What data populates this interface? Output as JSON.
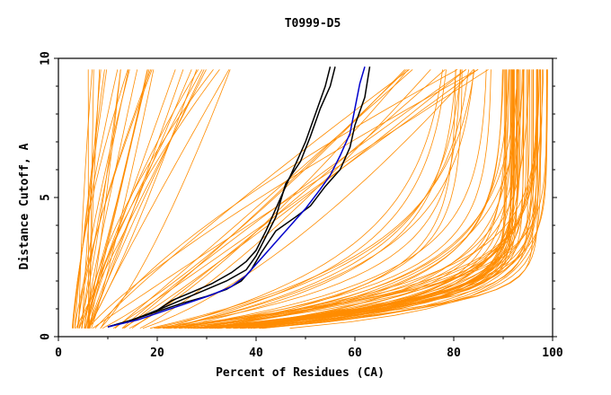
{
  "chart_data": {
    "type": "line",
    "title": "T0999-D5",
    "xlabel": "Percent of Residues (CA)",
    "ylabel": "Distance Cutoff, A",
    "xlim": [
      0,
      100
    ],
    "ylim": [
      0,
      10
    ],
    "x_ticks": [
      "0",
      "20",
      "40",
      "60",
      "80",
      "100"
    ],
    "y_ticks": [
      "0",
      "5",
      "10"
    ],
    "grid": false,
    "legend": "none",
    "colors": {
      "reference": "#000000",
      "highlight": "#0000cc",
      "other": "#ff8c00"
    },
    "series": [
      {
        "color": "#000000",
        "x": [
          10,
          14,
          18,
          22,
          26,
          30,
          34,
          38,
          40,
          42,
          44,
          46,
          49,
          51,
          53,
          55,
          56
        ],
        "y": [
          0.35,
          0.55,
          0.8,
          1.1,
          1.4,
          1.7,
          2.0,
          2.4,
          2.9,
          3.6,
          4.3,
          5.5,
          6.3,
          7.2,
          8.2,
          9.0,
          9.7
        ]
      },
      {
        "color": "#000000",
        "x": [
          10,
          15,
          20,
          23,
          27,
          31,
          35,
          38,
          40,
          42,
          44,
          46,
          48,
          50,
          52,
          54,
          55
        ],
        "y": [
          0.35,
          0.6,
          0.95,
          1.3,
          1.6,
          1.9,
          2.3,
          2.7,
          3.1,
          3.8,
          4.6,
          5.4,
          6.2,
          7.0,
          8.0,
          9.0,
          9.7
        ]
      },
      {
        "color": "#000000",
        "x": [
          10,
          15,
          20,
          25,
          30,
          34,
          37,
          39,
          41,
          44,
          48,
          51,
          54,
          57,
          59,
          60,
          62,
          63
        ],
        "y": [
          0.35,
          0.6,
          0.9,
          1.2,
          1.45,
          1.7,
          2.0,
          2.4,
          3.0,
          3.8,
          4.3,
          4.7,
          5.4,
          6.0,
          6.8,
          7.6,
          8.6,
          9.7
        ]
      },
      {
        "color": "#0000cc",
        "x": [
          10,
          16,
          21,
          26,
          31,
          35,
          38,
          40,
          42,
          45,
          48,
          50,
          53,
          55,
          57,
          59,
          60,
          61,
          62
        ],
        "y": [
          0.35,
          0.6,
          0.9,
          1.2,
          1.5,
          1.8,
          2.2,
          2.6,
          3.0,
          3.6,
          4.2,
          4.6,
          5.3,
          5.8,
          6.5,
          7.3,
          8.2,
          9.1,
          9.7
        ]
      }
    ]
  }
}
